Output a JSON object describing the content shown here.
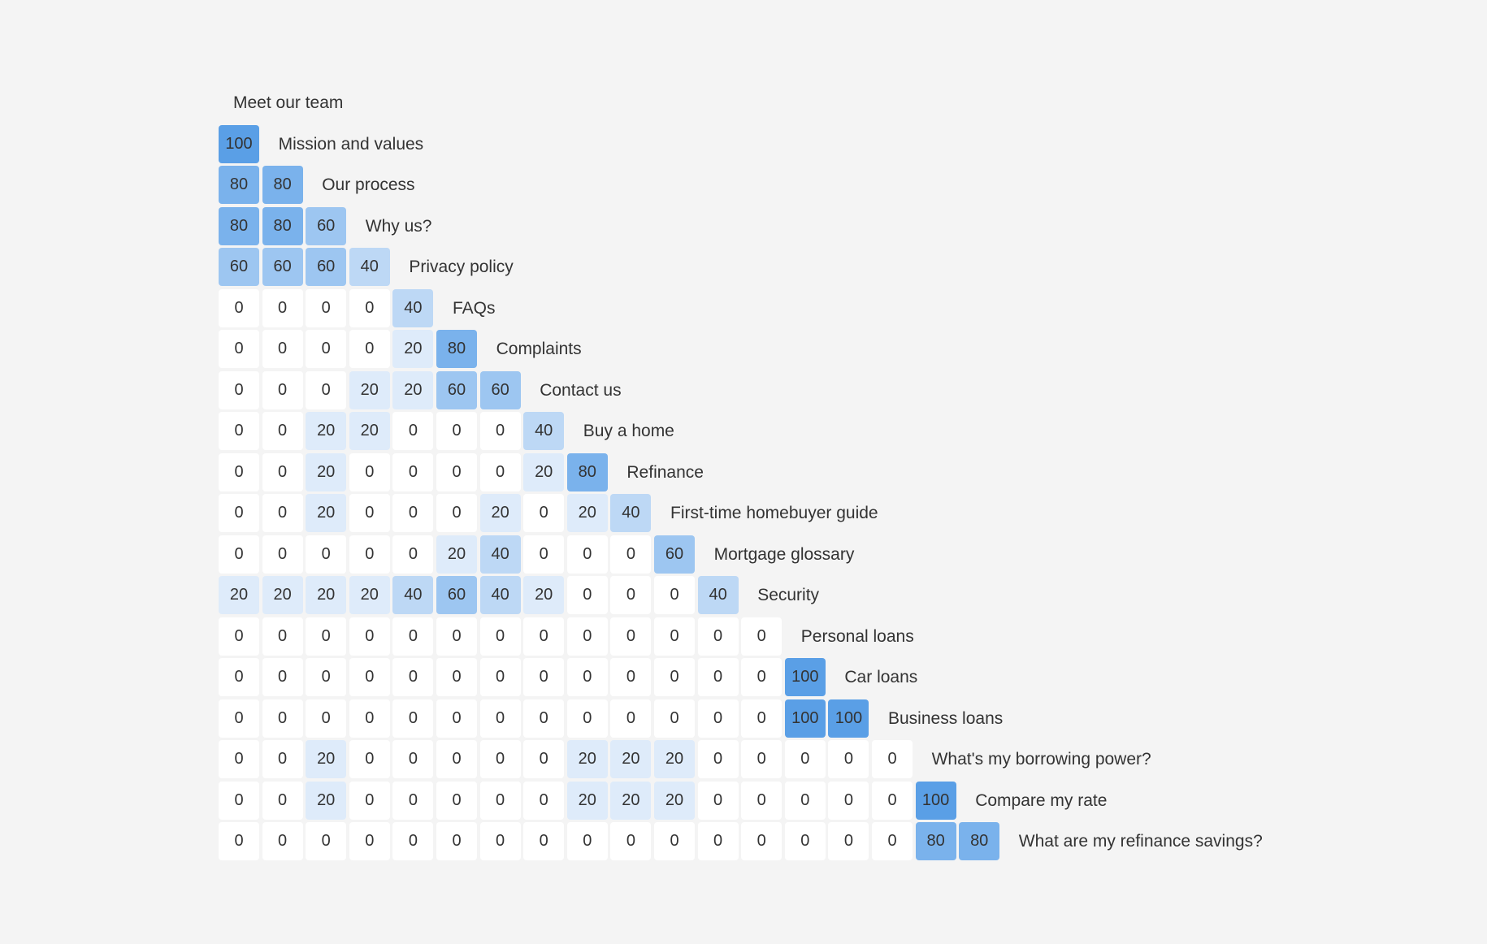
{
  "chart_data": {
    "type": "heatmap",
    "layout": "lower-triangular similarity matrix",
    "labels": [
      "Meet our team",
      "Mission and values",
      "Our process",
      "Why us?",
      "Privacy policy",
      "FAQs",
      "Complaints",
      "Contact us",
      "Buy a home",
      "Refinance",
      "First-time homebuyer guide",
      "Mortgage glossary",
      "Security",
      "Personal loans",
      "Car loans",
      "Business loans",
      "What's my borrowing power?",
      "Compare my rate",
      "What are my refinance savings?"
    ],
    "matrix": [
      [],
      [
        100
      ],
      [
        80,
        80
      ],
      [
        80,
        80,
        60
      ],
      [
        60,
        60,
        60,
        40
      ],
      [
        0,
        0,
        0,
        0,
        40
      ],
      [
        0,
        0,
        0,
        0,
        20,
        80
      ],
      [
        0,
        0,
        0,
        20,
        20,
        60,
        60
      ],
      [
        0,
        0,
        20,
        20,
        0,
        0,
        0,
        40
      ],
      [
        0,
        0,
        20,
        0,
        0,
        0,
        0,
        20,
        80
      ],
      [
        0,
        0,
        20,
        0,
        0,
        0,
        20,
        0,
        20,
        40
      ],
      [
        0,
        0,
        0,
        0,
        0,
        20,
        40,
        0,
        0,
        0,
        60
      ],
      [
        20,
        20,
        20,
        20,
        40,
        60,
        40,
        20,
        0,
        0,
        0,
        40
      ],
      [
        0,
        0,
        0,
        0,
        0,
        0,
        0,
        0,
        0,
        0,
        0,
        0,
        0
      ],
      [
        0,
        0,
        0,
        0,
        0,
        0,
        0,
        0,
        0,
        0,
        0,
        0,
        0,
        100
      ],
      [
        0,
        0,
        0,
        0,
        0,
        0,
        0,
        0,
        0,
        0,
        0,
        0,
        0,
        100,
        100
      ],
      [
        0,
        0,
        20,
        0,
        0,
        0,
        0,
        0,
        20,
        20,
        20,
        0,
        0,
        0,
        0,
        0
      ],
      [
        0,
        0,
        20,
        0,
        0,
        0,
        0,
        0,
        20,
        20,
        20,
        0,
        0,
        0,
        0,
        0,
        100
      ],
      [
        0,
        0,
        0,
        0,
        0,
        0,
        0,
        0,
        0,
        0,
        0,
        0,
        0,
        0,
        0,
        0,
        80,
        80
      ]
    ],
    "value_range": [
      0,
      100
    ],
    "colors": {
      "0": "#ffffff",
      "20": "#deebfa",
      "40": "#bdd8f5",
      "60": "#9dc6f1",
      "80": "#7ab2ec",
      "100": "#5a9fe6"
    }
  }
}
